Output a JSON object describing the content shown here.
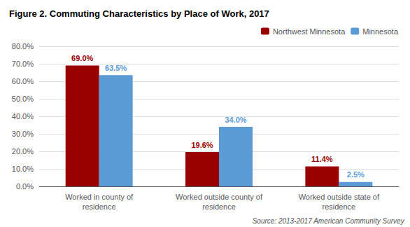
{
  "chart_data": {
    "type": "bar",
    "title": "Figure 2. Commuting Characteristics by Place of Work, 2017",
    "categories": [
      "Worked in county of\nresidence",
      "Worked outside county of\nresidence",
      "Worked outside state of\nresidence"
    ],
    "series": [
      {
        "name": "Northwest Minnesota",
        "color": "#990000",
        "values": [
          69.0,
          19.6,
          11.4
        ],
        "value_labels": [
          "69.0%",
          "19.6%",
          "11.4%"
        ]
      },
      {
        "name": "Minnesota",
        "color": "#5b9bd5",
        "values": [
          63.5,
          34.0,
          2.5
        ],
        "value_labels": [
          "63.5%",
          "34.0%",
          "2.5%"
        ]
      }
    ],
    "ylim": [
      0,
      80
    ],
    "yticks": [
      {
        "value": 0,
        "label": "0.0%"
      },
      {
        "value": 10,
        "label": "10.0%"
      },
      {
        "value": 20,
        "label": "20.0%"
      },
      {
        "value": 30,
        "label": "30.0%"
      },
      {
        "value": 40,
        "label": "40.0%"
      },
      {
        "value": 50,
        "label": "50.0%"
      },
      {
        "value": 60,
        "label": "60.0%"
      },
      {
        "value": 70,
        "label": "70.0%"
      },
      {
        "value": 80,
        "label": "80.0%"
      }
    ],
    "grid": true,
    "legend": "upper right",
    "data_labels": true,
    "annotations": [
      "Source: 2013-2017 American Community Survey"
    ]
  }
}
